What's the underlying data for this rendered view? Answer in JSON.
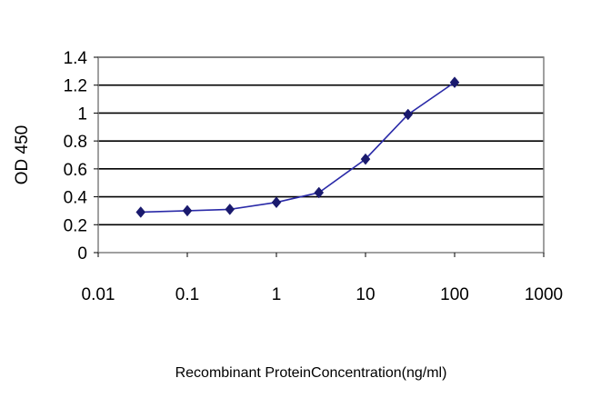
{
  "chart_data": {
    "type": "line",
    "title": "",
    "xlabel": "Recombinant ProteinConcentration(ng/ml)",
    "ylabel": "OD 450",
    "xscale": "log",
    "xlim": [
      0.01,
      1000
    ],
    "ylim": [
      0,
      1.4
    ],
    "xticks": [
      0.01,
      0.1,
      1,
      10,
      100,
      1000
    ],
    "xtick_labels": [
      "0.01",
      "0.1",
      "1",
      "10",
      "100",
      "1000"
    ],
    "yticks": [
      0,
      0.2,
      0.4,
      0.6,
      0.8,
      1,
      1.2,
      1.4
    ],
    "ytick_labels": [
      "0",
      "0.2",
      "0.4",
      "0.6",
      "0.8",
      "1",
      "1.2",
      "1.4"
    ],
    "grid": "horizontal",
    "legend": "none",
    "series": [
      {
        "x": [
          0.03,
          0.1,
          0.3,
          1,
          3,
          10,
          30,
          100
        ],
        "y": [
          0.29,
          0.3,
          0.31,
          0.36,
          0.43,
          0.67,
          0.99,
          1.22
        ]
      }
    ],
    "colors": {
      "line": "#2a2aa8",
      "marker": "#1a1a6e",
      "grid": "#000000"
    }
  }
}
